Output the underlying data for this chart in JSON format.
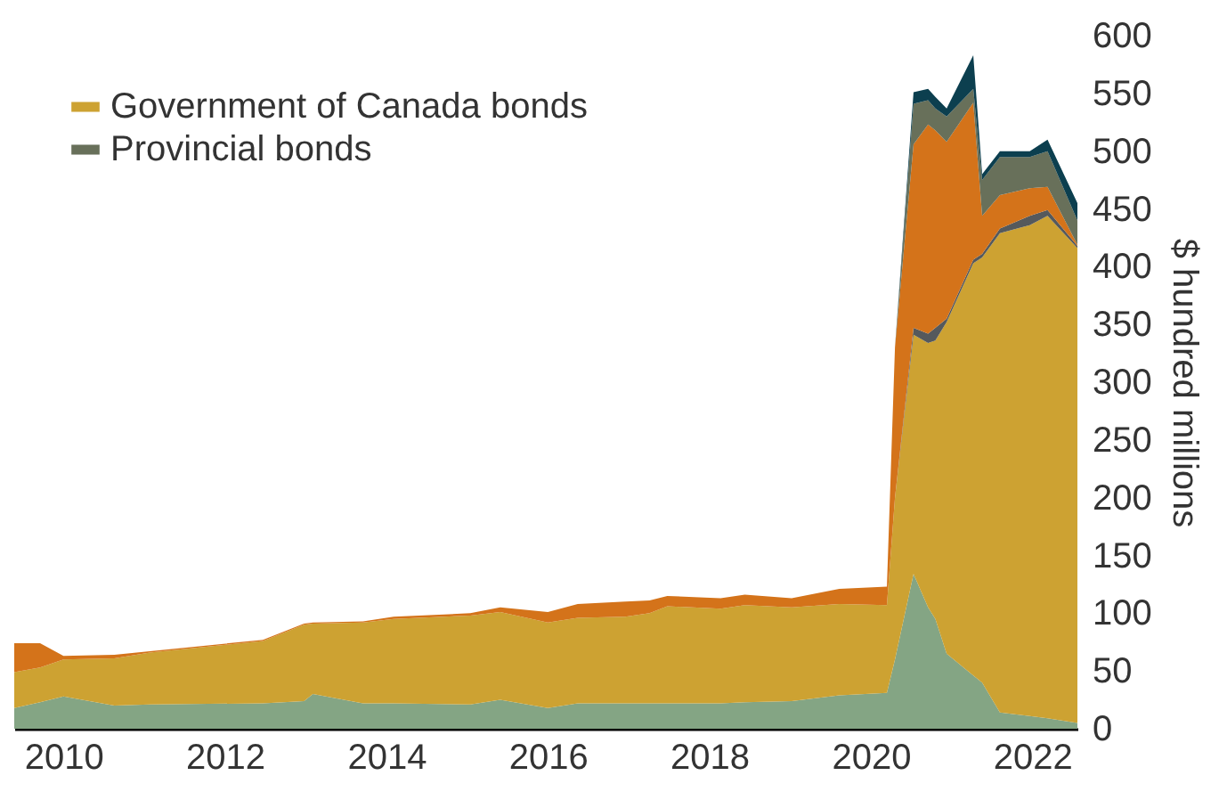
{
  "chart_data": {
    "type": "area",
    "stacked": true,
    "ylabel": "$ hundred millions",
    "legend": "top left",
    "grid": false,
    "x": [
      2009.39,
      2009.71,
      2010.0,
      2010.63,
      2011.07,
      2012.47,
      2012.98,
      2013.09,
      2013.71,
      2014.09,
      2015.04,
      2015.41,
      2016.0,
      2016.37,
      2016.96,
      2017.26,
      2017.48,
      2018.14,
      2018.44,
      2019.02,
      2019.61,
      2020.2,
      2020.3,
      2020.53,
      2020.71,
      2020.8,
      2020.94,
      2021.27,
      2021.38,
      2021.6,
      2021.97,
      2022.19,
      2022.56
    ],
    "xlim": [
      2009.39,
      2022.56
    ],
    "xticks": [
      2010,
      2012,
      2014,
      2016,
      2018,
      2020,
      2022
    ],
    "ylim": [
      0,
      600
    ],
    "yticks": [
      0,
      50,
      100,
      150,
      200,
      250,
      300,
      350,
      400,
      450,
      500,
      550,
      600
    ],
    "series": [
      {
        "color": "#84a584",
        "values": [
          18,
          23,
          28,
          20,
          21,
          22,
          24,
          30,
          22,
          22,
          21,
          25,
          18,
          22,
          22,
          22,
          22,
          22,
          23,
          24,
          29,
          31,
          60,
          134,
          105,
          95,
          65,
          46,
          40,
          14,
          11,
          9,
          5
        ]
      },
      {
        "name": "Government of Canada bonds",
        "color": "#cda232",
        "values": [
          31,
          30,
          32,
          41,
          45,
          54,
          66,
          61,
          70,
          73,
          77,
          76,
          74,
          74,
          75,
          78,
          84,
          82,
          84,
          81,
          79,
          76,
          140,
          207,
          229,
          241,
          287,
          357,
          368,
          415,
          425,
          435,
          411
        ]
      },
      {
        "color": "#55595c",
        "values": [
          0,
          0,
          0,
          0,
          0,
          0,
          0,
          0,
          0,
          0,
          0,
          0,
          0,
          0,
          0,
          0,
          0,
          0,
          0,
          0,
          0,
          0,
          0,
          6,
          8,
          11,
          3,
          3,
          3,
          4,
          8,
          5,
          2
        ]
      },
      {
        "color": "#d4731a",
        "values": [
          25,
          21,
          3,
          3,
          1,
          1,
          1,
          1,
          1,
          2,
          2,
          4,
          9,
          12,
          13,
          11,
          9,
          9,
          9,
          8,
          13,
          16,
          130,
          159,
          181,
          171,
          153,
          136,
          33,
          29,
          24,
          20,
          1
        ]
      },
      {
        "name": "Provincial bonds",
        "color": "#68705a",
        "values": [
          0,
          0,
          0,
          0,
          0,
          0,
          0,
          0,
          0,
          0,
          0,
          0,
          0,
          0,
          0,
          0,
          0,
          0,
          0,
          0,
          0,
          0,
          0,
          35,
          21,
          19,
          22,
          12,
          31,
          33,
          27,
          31,
          21
        ]
      },
      {
        "color": "#0c3f4f",
        "values": [
          0,
          0,
          0,
          0,
          0,
          0,
          0,
          0,
          0,
          0,
          0,
          0,
          0,
          0,
          0,
          0,
          0,
          0,
          0,
          0,
          0,
          0,
          0,
          10,
          10,
          10,
          7,
          29,
          5,
          5,
          5,
          10,
          15
        ]
      }
    ]
  }
}
